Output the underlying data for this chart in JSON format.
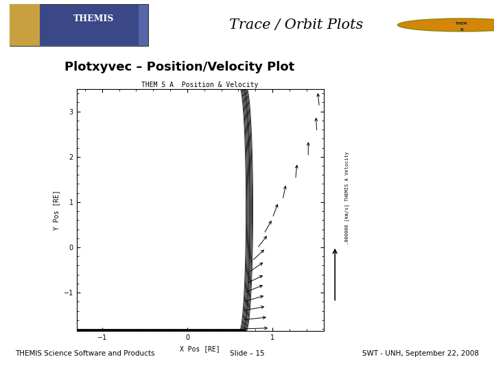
{
  "title": "Trace / Orbit Plots",
  "subtitle": "Plotxyvec – Position/Velocity Plot",
  "plot_title": "THEM S A  Position & Velocity",
  "xlabel": "X Pos [RE]",
  "ylabel": "Y Pos [RE]",
  "right_label": ".000000 [km/s] THEMIS A Velocity",
  "footer_left": "THEMIS Science Software and Products",
  "footer_center": "Slide – 15",
  "footer_right": "SWT - UNH, September 22, 2008",
  "header_line_color": "#1a237e",
  "footer_line_color": "#1a237e",
  "bg_color": "#ffffff",
  "text_color": "#000000",
  "plot_bg": "#ffffff",
  "trace_color": "#000000",
  "xlim": [
    -1.3,
    1.6
  ],
  "ylim": [
    -1.85,
    3.5
  ],
  "xticks": [
    -1,
    0,
    1
  ],
  "yticks": [
    -1,
    0,
    1,
    2,
    3
  ],
  "n_traces": 10
}
